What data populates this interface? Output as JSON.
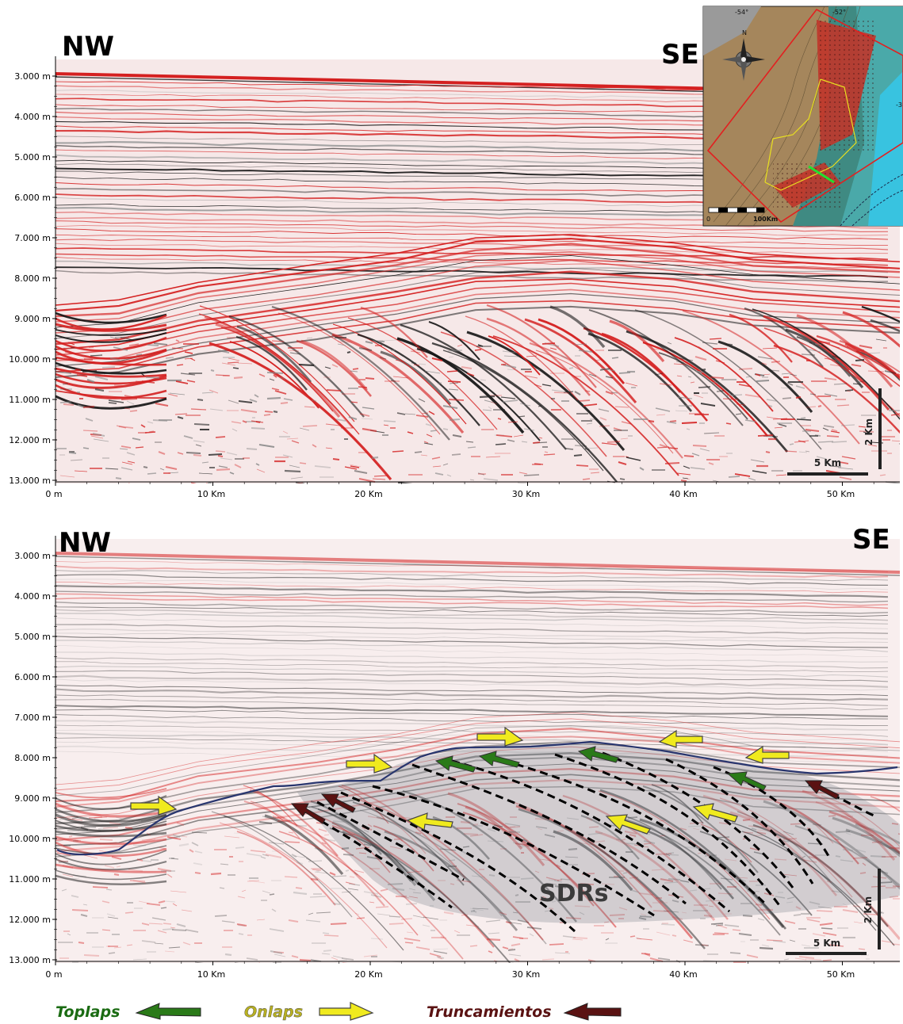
{
  "top_section": {
    "label_left": "NW",
    "label_right": "SE",
    "depth_ticks": [
      "3.000 m",
      "4.000 m",
      "5.000 m",
      "6.000 m",
      "7.000 m",
      "8.000 m",
      "9.000 m",
      "10.000 m",
      "11.000 m",
      "12.000 m",
      "13.000 m"
    ],
    "distance_ticks": [
      "0 m",
      "10 Km",
      "20 Km",
      "30 Km",
      "40 Km",
      "50 Km"
    ],
    "vertical_scale": "2 Km",
    "horizontal_scale": "5 Km"
  },
  "bottom_section": {
    "label_left": "NW",
    "label_right": "SE",
    "depth_ticks": [
      "3.000 m",
      "4.000 m",
      "5.000 m",
      "6.000 m",
      "7.000 m",
      "8.000 m",
      "9.000 m",
      "10.000 m",
      "11.000 m",
      "12.000 m",
      "13.000 m"
    ],
    "distance_ticks": [
      "0 m",
      "10 Km",
      "20 Km",
      "30 Km",
      "40 Km",
      "50 Km"
    ],
    "vertical_scale": "2 Km",
    "horizontal_scale": "5 Km",
    "annotation": "SDRs"
  },
  "inset_map": {
    "lon_labels": [
      "-54°",
      "-52°"
    ],
    "edge_label": "-3",
    "north_label": "N",
    "scale_start": "0",
    "scale_end": "100Km"
  },
  "legend": {
    "toplaps": {
      "label": "Toplaps",
      "color": "#1a6b12"
    },
    "onlaps": {
      "label": "Onlaps",
      "color": "#e8e01a"
    },
    "truncamientos": {
      "label": "Truncamientos",
      "color": "#5a1212"
    }
  }
}
